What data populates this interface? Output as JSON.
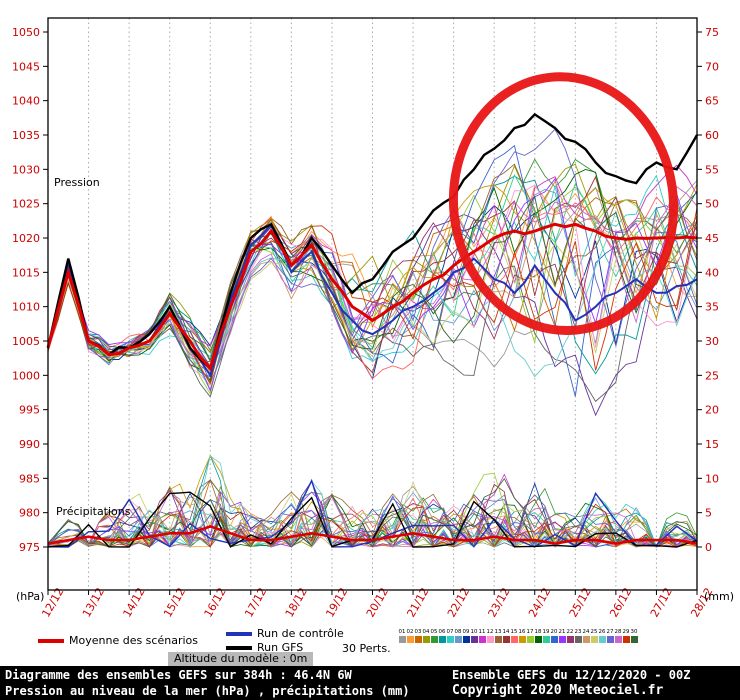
{
  "labels": {
    "pressure": "Pression",
    "precipitation": "Précipitations",
    "hpa_unit": "(hPa)",
    "mm_unit": "(mm)"
  },
  "legend": {
    "mean_label": "Moyenne des scénarios",
    "mean_color": "#dd0000",
    "control_label": "Run de contrôle",
    "control_color": "#2233bb",
    "gfs_label": "Run GFS",
    "gfs_color": "#000000",
    "perts_label": "30 Perts.",
    "member_labels": [
      "01",
      "02",
      "03",
      "04",
      "05",
      "06",
      "07",
      "08",
      "09",
      "10",
      "11",
      "12",
      "13",
      "14",
      "15",
      "16",
      "17",
      "18",
      "19",
      "20",
      "21",
      "22",
      "23",
      "24",
      "25",
      "26",
      "27",
      "28",
      "29",
      "30"
    ]
  },
  "altitude_label": "Altitude du modèle : 0m",
  "footer": {
    "title_line": "Diagramme des ensembles GEFS sur 384h : 46.4N 6W",
    "subtitle_line": "Pression au niveau de la mer (hPa) , précipitations (mm)",
    "run_line": "Ensemble GEFS du 12/12/2020 - 00Z",
    "copyright_line": "Copyright 2020 Meteociel.fr"
  },
  "chart_data": {
    "type": "line",
    "title": "Diagramme des ensembles GEFS sur 384h : 46.4N 6W",
    "x_axis": {
      "dates": [
        "12/12",
        "13/12",
        "14/12",
        "15/12",
        "16/12",
        "17/12",
        "18/12",
        "19/12",
        "20/12",
        "21/12",
        "22/12",
        "23/12",
        "24/12",
        "25/12",
        "26/12",
        "27/12",
        "28/12"
      ],
      "hours_step": 12,
      "hours_max": 384
    },
    "y_axis_left": {
      "label": "Pression (hPa)",
      "min": 975,
      "max": 1050,
      "ticks": [
        975,
        980,
        985,
        990,
        995,
        1000,
        1005,
        1010,
        1015,
        1020,
        1025,
        1030,
        1035,
        1040,
        1045,
        1050
      ],
      "color": "#cc0000"
    },
    "y_axis_right": {
      "label": "Précipitations (mm)",
      "min": 0,
      "max": 75,
      "ticks": [
        0,
        5,
        10,
        15,
        20,
        25,
        30,
        35,
        40,
        45,
        50,
        55,
        60,
        65,
        70,
        75
      ],
      "color": "#cc0000"
    },
    "grid": "vertical-dotted",
    "series": {
      "mean_pressure": [
        1004,
        1015,
        1005,
        1003,
        1004,
        1005,
        1009,
        1005,
        1001,
        1010,
        1018,
        1021,
        1016,
        1019,
        1014,
        1010,
        1008,
        1010,
        1012,
        1014,
        1016,
        1018,
        1020,
        1021,
        1021,
        1022,
        1022,
        1021,
        1020,
        1020,
        1020,
        1020,
        1020
      ],
      "control_pressure": [
        1004,
        1016,
        1005,
        1003,
        1004,
        1005,
        1010,
        1004,
        1000,
        1011,
        1019,
        1022,
        1015,
        1018,
        1012,
        1008,
        1006,
        1008,
        1010,
        1012,
        1015,
        1017,
        1014,
        1012,
        1016,
        1012,
        1008,
        1010,
        1012,
        1014,
        1012,
        1013,
        1014
      ],
      "gfs_pressure": [
        1004,
        1017,
        1005,
        1003,
        1004,
        1006,
        1010,
        1004,
        1001,
        1012,
        1020,
        1022,
        1016,
        1020,
        1016,
        1012,
        1014,
        1018,
        1020,
        1024,
        1026,
        1030,
        1033,
        1036,
        1038,
        1036,
        1034,
        1031,
        1029,
        1028,
        1031,
        1030,
        1035
      ],
      "mean_precip": [
        0.5,
        1,
        1.5,
        1,
        1,
        1.5,
        2,
        2,
        3,
        2,
        1,
        1,
        1.5,
        2,
        1.5,
        1,
        1,
        1.5,
        2,
        1.5,
        1,
        1,
        1.5,
        1,
        1,
        0.5,
        1,
        1,
        0.5,
        1,
        1,
        1,
        0.5
      ]
    },
    "members": {
      "count": 30,
      "seed": 20201212,
      "pressure_spread_min": [
        1003,
        1012,
        1003,
        1001,
        1002,
        1002,
        1005,
        1000,
        996,
        1005,
        1013,
        1015,
        1010,
        1012,
        1006,
        1001,
        998,
        999,
        999,
        999,
        1000,
        999,
        998,
        997,
        997,
        996,
        993,
        988,
        992,
        996,
        1000,
        1001,
        1002
      ],
      "pressure_spread_max": [
        1005,
        1018,
        1007,
        1005,
        1006,
        1008,
        1013,
        1009,
        1005,
        1015,
        1022,
        1024,
        1021,
        1023,
        1021,
        1019,
        1021,
        1023,
        1025,
        1027,
        1029,
        1031,
        1033,
        1035,
        1037,
        1037,
        1035,
        1033,
        1031,
        1031,
        1033,
        1035,
        1036
      ],
      "precip_max_envelope": [
        1,
        4,
        5,
        6,
        8,
        6,
        10,
        8,
        15,
        8,
        6,
        5,
        8,
        10,
        8,
        6,
        6,
        8,
        10,
        8,
        6,
        8,
        12,
        8,
        10,
        6,
        5,
        8,
        5,
        6,
        8,
        5,
        2
      ],
      "colors": [
        "#999999",
        "#ff9933",
        "#cc6600",
        "#999900",
        "#339933",
        "#009999",
        "#33cccc",
        "#6699cc",
        "#003399",
        "#663399",
        "#cc33cc",
        "#ff99cc",
        "#996633",
        "#993333",
        "#ff6666",
        "#cc9900",
        "#99cc33",
        "#006600",
        "#33cc99",
        "#3366cc",
        "#9933ff",
        "#993366",
        "#666666",
        "#cc9966",
        "#cccc66",
        "#66cccc",
        "#6666cc",
        "#cc66cc",
        "#cc3300",
        "#336633"
      ]
    },
    "annotation": {
      "shape": "ellipse",
      "color": "#e81515",
      "stroke_px": 9,
      "center_hour": 305,
      "center_hpa": 1025,
      "rx_hours": 65,
      "ry_hpa": 18.5,
      "rotation_deg": -6
    }
  }
}
